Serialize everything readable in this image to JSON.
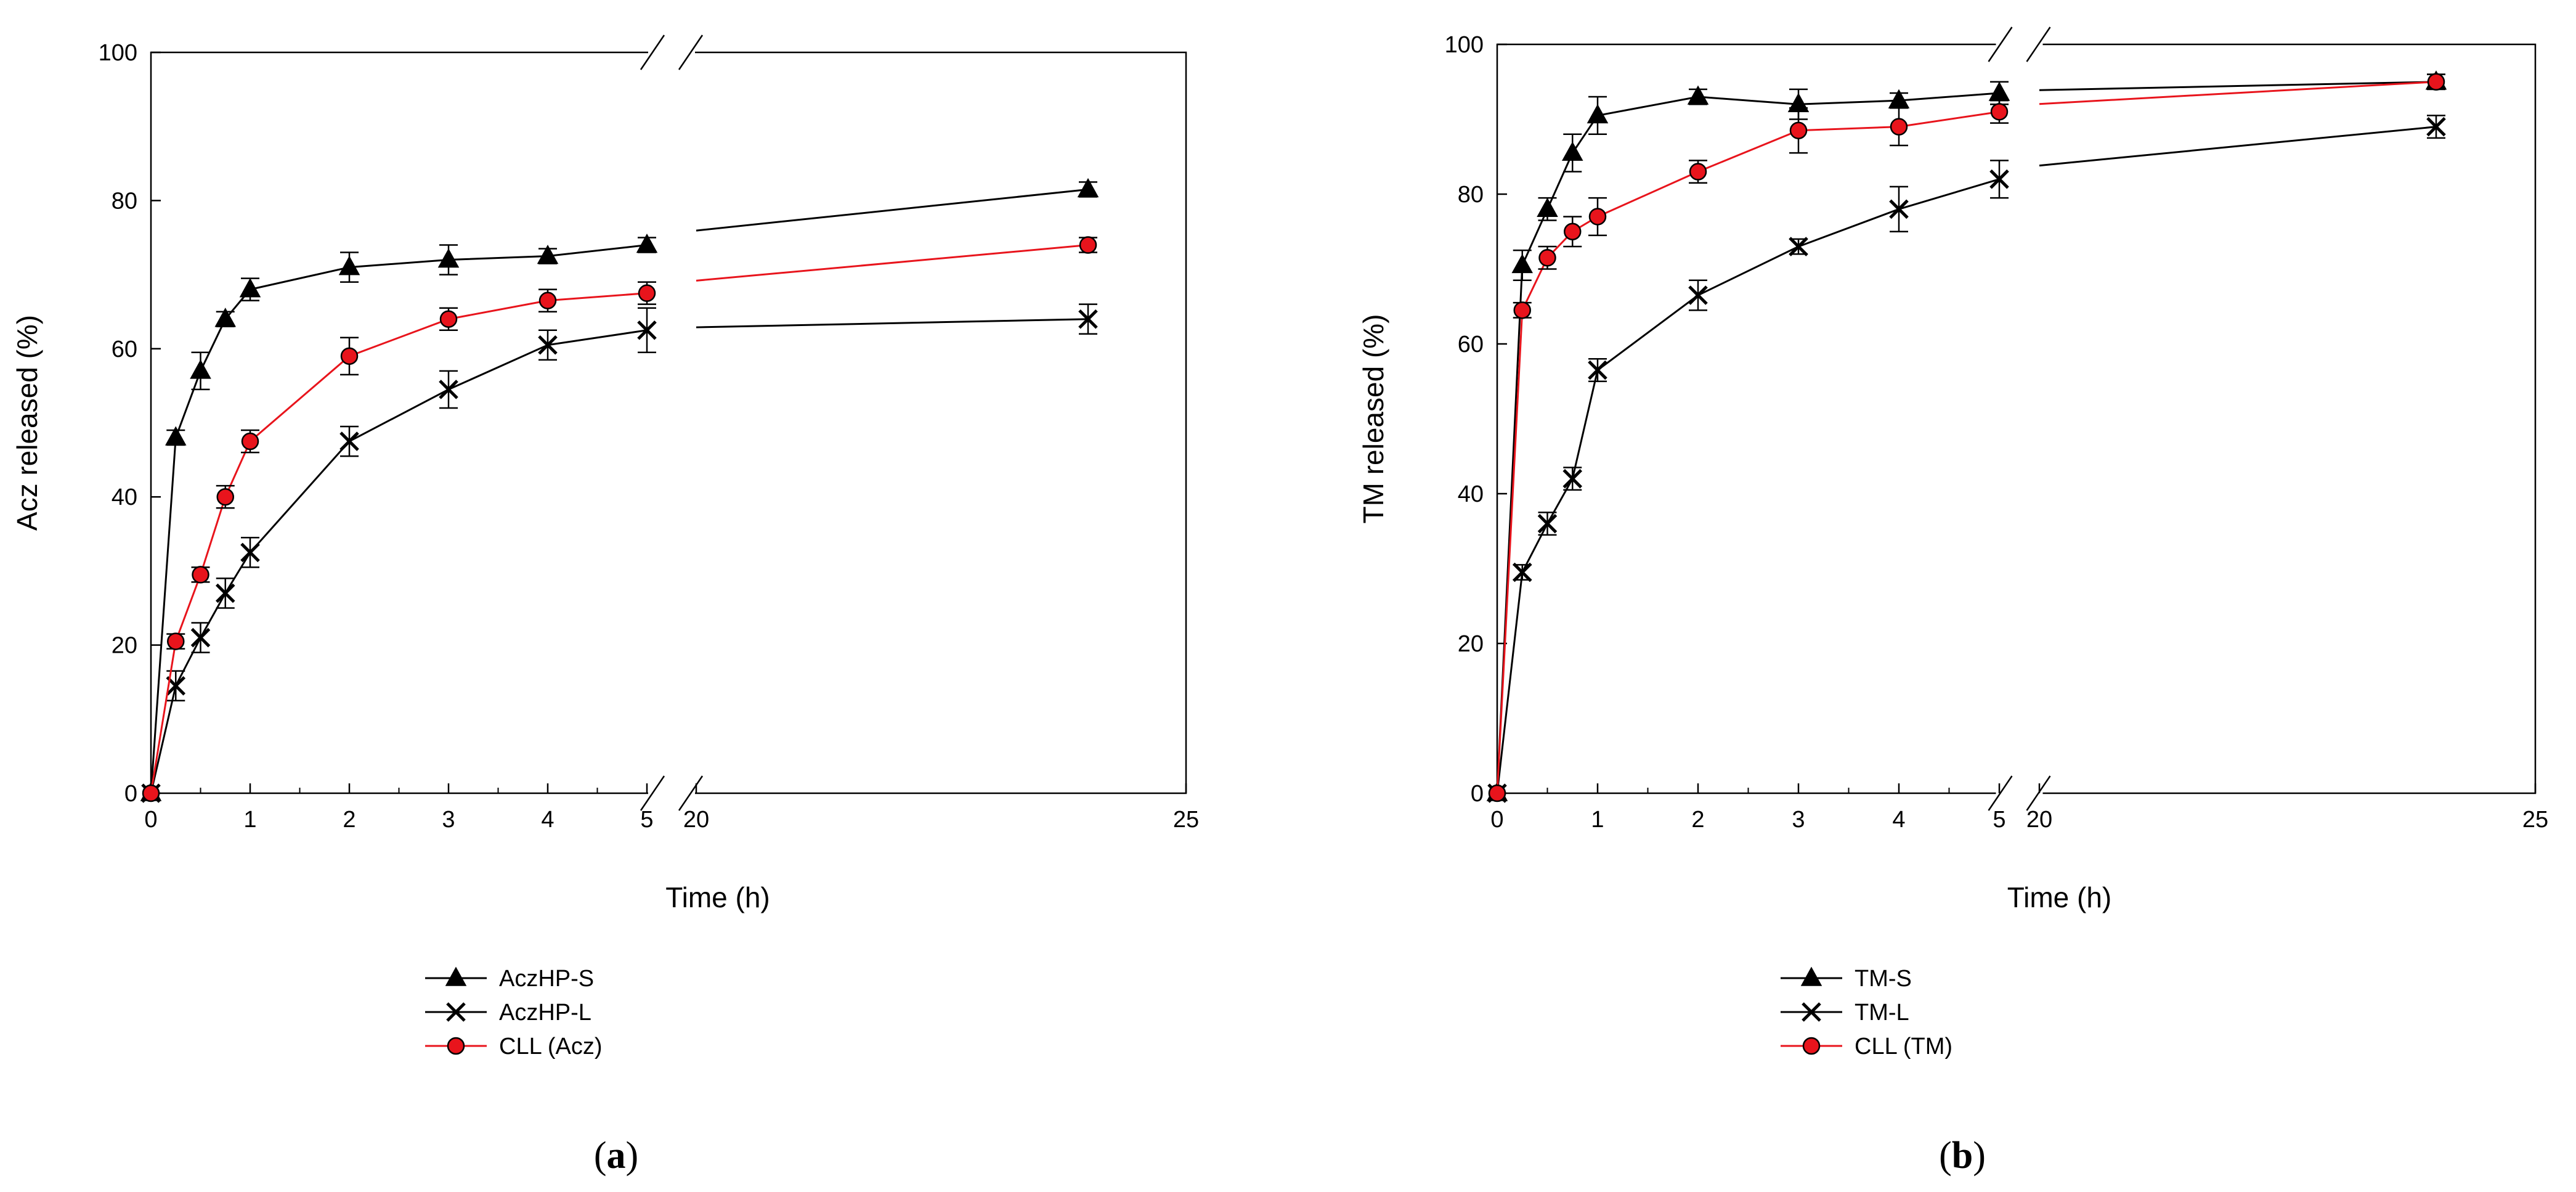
{
  "chart_data": [
    {
      "type": "line",
      "panel_label": "a",
      "xlabel": "Time (h)",
      "ylabel": "Acz released (%)",
      "ylim": [
        0,
        100
      ],
      "yticks": [
        0,
        20,
        40,
        60,
        80,
        100
      ],
      "xticks_left": [
        0,
        1,
        2,
        3,
        4,
        5
      ],
      "xticks_right": [
        20,
        25
      ],
      "x_break": "between 5 h and 20 h",
      "series": [
        {
          "name": "AczHP-S",
          "marker": "triangle",
          "color": "#000000",
          "x": [
            0,
            0.25,
            0.5,
            0.75,
            1,
            2,
            3,
            4,
            5,
            24
          ],
          "y": [
            0,
            48,
            57,
            64,
            68,
            71,
            72,
            72.5,
            74,
            81.5
          ],
          "err": [
            0,
            1,
            2.5,
            1,
            1.5,
            2,
            2,
            1,
            1,
            1
          ]
        },
        {
          "name": "AczHP-L",
          "marker": "x",
          "color": "#000000",
          "x": [
            0,
            0.25,
            0.5,
            0.75,
            1,
            2,
            3,
            4,
            5,
            24
          ],
          "y": [
            0,
            14.5,
            21,
            27,
            32.5,
            47.5,
            54.5,
            60.5,
            62.5,
            64
          ],
          "err": [
            0,
            2,
            2,
            2,
            2,
            2,
            2.5,
            2,
            3,
            2
          ]
        },
        {
          "name": "CLL (Acz)",
          "marker": "circle",
          "color": "#e8141c",
          "x": [
            0,
            0.25,
            0.5,
            0.75,
            1,
            2,
            3,
            4,
            5,
            24
          ],
          "y": [
            0,
            20.5,
            29.5,
            40,
            47.5,
            59,
            64,
            66.5,
            67.5,
            74
          ],
          "err": [
            0,
            1,
            1,
            1.5,
            1.5,
            2.5,
            1.5,
            1.5,
            1.5,
            1
          ]
        }
      ],
      "legend": [
        "AczHP-S",
        "AczHP-L",
        "CLL (Acz)"
      ]
    },
    {
      "type": "line",
      "panel_label": "b",
      "xlabel": "Time (h)",
      "ylabel": "TM released (%)",
      "ylim": [
        0,
        100
      ],
      "yticks": [
        0,
        20,
        40,
        60,
        80,
        100
      ],
      "xticks_left": [
        0,
        1,
        2,
        3,
        4,
        5
      ],
      "xticks_right": [
        20,
        25
      ],
      "x_break": "between 5 h and 20 h",
      "series": [
        {
          "name": "TM-S",
          "marker": "triangle",
          "color": "#000000",
          "x": [
            0,
            0.25,
            0.5,
            0.75,
            1,
            2,
            3,
            4,
            5,
            24
          ],
          "y": [
            0,
            70.5,
            78,
            85.5,
            90.5,
            93,
            92,
            92.5,
            93.5,
            95
          ],
          "err": [
            0,
            2,
            1.5,
            2.5,
            2.5,
            1,
            2,
            1,
            1.5,
            1
          ]
        },
        {
          "name": "TM-L",
          "marker": "x",
          "color": "#000000",
          "x": [
            0,
            0.25,
            0.5,
            0.75,
            1,
            2,
            3,
            4,
            5,
            24
          ],
          "y": [
            0,
            29.5,
            36,
            42,
            56.5,
            66.5,
            73,
            78,
            82,
            89
          ],
          "err": [
            0,
            1,
            1.5,
            1.5,
            1.5,
            2,
            1,
            3,
            2.5,
            1.5
          ]
        },
        {
          "name": "CLL (TM)",
          "marker": "circle",
          "color": "#e8141c",
          "x": [
            0,
            0.25,
            0.5,
            0.75,
            1,
            2,
            3,
            4,
            5,
            24
          ],
          "y": [
            0,
            64.5,
            71.5,
            75,
            77,
            83,
            88.5,
            89,
            91,
            95
          ],
          "err": [
            0,
            1,
            1.5,
            2,
            2.5,
            1.5,
            3,
            2.5,
            1.5,
            1
          ]
        }
      ],
      "legend": [
        "TM-S",
        "TM-L",
        "CLL (TM)"
      ]
    }
  ]
}
